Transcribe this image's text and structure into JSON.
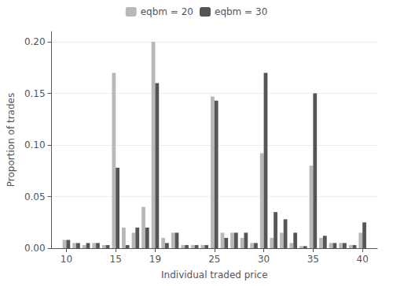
{
  "chart_data": {
    "type": "bar",
    "xlabel": "Individual traded price",
    "ylabel": "Proportion of trades",
    "x": [
      10,
      11,
      12,
      13,
      14,
      15,
      16,
      17,
      18,
      19,
      20,
      21,
      22,
      23,
      24,
      25,
      26,
      27,
      28,
      29,
      30,
      31,
      32,
      33,
      34,
      35,
      36,
      37,
      38,
      39,
      40
    ],
    "series": [
      {
        "name": "eqbm = 20",
        "color": "#b8b8b8",
        "values": [
          0.008,
          0.005,
          0.003,
          0.005,
          0.003,
          0.17,
          0.02,
          0.015,
          0.04,
          0.2,
          0.01,
          0.015,
          0.003,
          0.003,
          0.003,
          0.147,
          0.015,
          0.015,
          0.01,
          0.005,
          0.092,
          0.01,
          0.015,
          0.005,
          0.002,
          0.08,
          0.01,
          0.005,
          0.005,
          0.003,
          0.015
        ]
      },
      {
        "name": "eqbm = 30",
        "color": "#555555",
        "values": [
          0.008,
          0.005,
          0.005,
          0.005,
          0.003,
          0.078,
          0.003,
          0.02,
          0.02,
          0.16,
          0.005,
          0.015,
          0.003,
          0.003,
          0.003,
          0.143,
          0.01,
          0.015,
          0.015,
          0.005,
          0.17,
          0.035,
          0.028,
          0.015,
          0.002,
          0.15,
          0.012,
          0.005,
          0.005,
          0.003,
          0.025
        ]
      }
    ],
    "xlim": [
      8.5,
      41.5
    ],
    "xticks": [
      10,
      15,
      19,
      25,
      30,
      35,
      40
    ],
    "ylim": [
      0,
      0.21
    ],
    "yticks": [
      {
        "value": 0,
        "label": "0.00"
      },
      0.05,
      {
        "value": 0.1,
        "label": "0.10"
      },
      0.15,
      {
        "value": 0.2,
        "label": "0.20"
      }
    ],
    "grid": true,
    "legend": "top"
  }
}
